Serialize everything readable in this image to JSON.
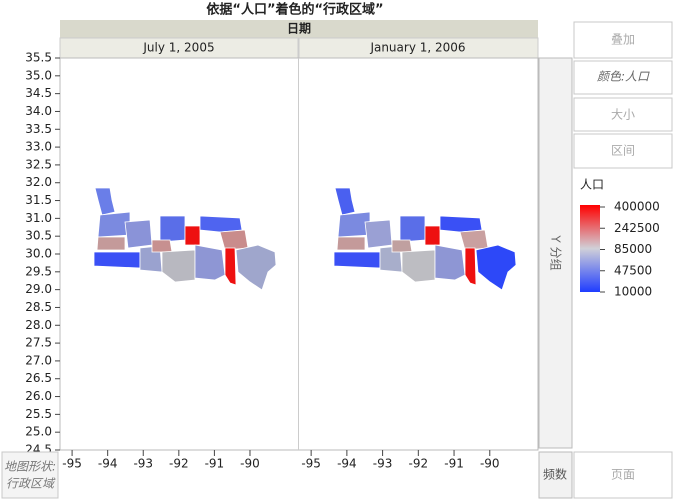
{
  "title": "依据“人口”着色的“行政区域”",
  "group_title": "日期",
  "panels": [
    "July 1, 2005",
    "January 1, 2006"
  ],
  "chart_data": {
    "type": "map",
    "ylim": [
      24.5,
      35.5
    ],
    "yticks": [
      24.5,
      {
        "value": 25,
        "label": "25.0"
      },
      25.5,
      {
        "value": 26,
        "label": "26.0"
      },
      26.5,
      {
        "value": 27,
        "label": "27.0"
      },
      27.5,
      {
        "value": 28,
        "label": "28.0"
      },
      28.5,
      {
        "value": 29,
        "label": "29.0"
      },
      29.5,
      {
        "value": 30,
        "label": "30.0"
      },
      30.5,
      {
        "value": 31,
        "label": "31.0"
      },
      31.5,
      {
        "value": 32,
        "label": "32.0"
      },
      32.5,
      {
        "value": 33,
        "label": "33.0"
      },
      33.5,
      {
        "value": 34,
        "label": "34.0"
      },
      34.5,
      {
        "value": 35,
        "label": "35.0"
      },
      35.5
    ],
    "xlim": [
      -95.34,
      -88.65
    ],
    "xticks": [
      -95,
      -94,
      -93,
      -92,
      -91,
      -90
    ]
  },
  "color_legend": {
    "title": "人口",
    "ticks": [
      400000,
      242500,
      85000,
      47500,
      10000
    ]
  },
  "buttons": {
    "overlay": "叠加",
    "color": "颜色:人口",
    "size": "大小",
    "interval": "区间",
    "group_y": "Y 分组",
    "freq": "频数",
    "page": "页面",
    "map_shape": "地图形状:",
    "map_shape_value": "行政区域"
  }
}
